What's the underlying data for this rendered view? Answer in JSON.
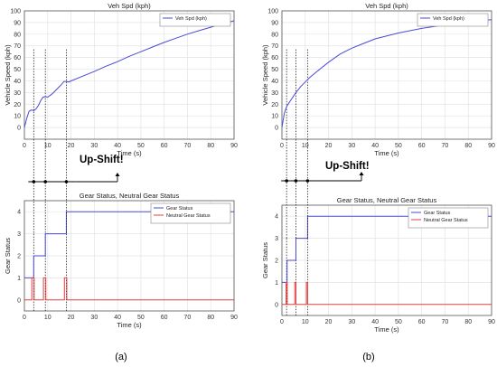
{
  "panel_labels": [
    "(a)",
    "(b)"
  ],
  "annotation": "Up-Shift!",
  "chart_data": [
    {
      "type": "line",
      "title": "Veh Spd (kph)",
      "xlabel": "Time (s)",
      "ylabel": "Vehicle Speed (kph)",
      "xlim": [
        0,
        90
      ],
      "ylim": [
        -10,
        100
      ],
      "xticks": [
        0,
        10,
        20,
        30,
        40,
        50,
        60,
        70,
        80,
        90
      ],
      "yticks": [
        0,
        10,
        20,
        30,
        40,
        50,
        60,
        70,
        80,
        90,
        100
      ],
      "grid": true,
      "legend_position": "top-right",
      "series": [
        {
          "name": "Veh Spd (kph)",
          "color": "#4a4ad8",
          "x": [
            0,
            1,
            2,
            3,
            4,
            5,
            6,
            7,
            8,
            9,
            10,
            12,
            14,
            16,
            17,
            18,
            19,
            20,
            25,
            30,
            35,
            40,
            45,
            50,
            55,
            60,
            65,
            70,
            75,
            80,
            85,
            90
          ],
          "y": [
            0,
            8,
            14,
            15,
            14.5,
            16,
            19,
            23,
            26,
            26.5,
            26,
            29,
            33,
            37,
            39.5,
            39.5,
            39,
            40,
            44,
            48,
            52.5,
            56.5,
            61,
            65,
            69,
            73,
            76.5,
            80,
            83,
            86,
            89,
            91.5
          ]
        }
      ],
      "event_lines_x": [
        4,
        9,
        18
      ]
    },
    {
      "type": "line",
      "title": "Gear Status, Neutral Gear Status",
      "xlabel": "Time (s)",
      "ylabel": "Gear Status",
      "xlim": [
        0,
        90
      ],
      "ylim": [
        -0.5,
        4.5
      ],
      "xticks": [
        0,
        10,
        20,
        30,
        40,
        50,
        60,
        70,
        80,
        90
      ],
      "yticks": [
        0,
        1,
        2,
        3,
        4
      ],
      "grid": true,
      "legend_position": "top-right",
      "series": [
        {
          "name": "Gear Status",
          "color": "#4a4ad8",
          "x": [
            0,
            4,
            4,
            9,
            9,
            18,
            18,
            90
          ],
          "y": [
            1,
            1,
            2,
            2,
            3,
            3,
            4,
            4
          ]
        },
        {
          "name": "Neutral Gear Status",
          "color": "#e04040",
          "x": [
            0,
            3.2,
            3.2,
            4.2,
            4.2,
            8.2,
            8.2,
            9.2,
            9.2,
            17.2,
            17.2,
            18.2,
            18.2,
            90
          ],
          "y": [
            0,
            0,
            1,
            1,
            0,
            0,
            1,
            1,
            0,
            0,
            1,
            1,
            0,
            0
          ]
        }
      ],
      "event_lines_x": [
        4,
        9,
        18
      ]
    },
    {
      "type": "line",
      "title": "Veh Spd (kph)",
      "xlabel": "Time (s)",
      "ylabel": "Vehicle Speed (kph)",
      "xlim": [
        0,
        90
      ],
      "ylim": [
        -10,
        100
      ],
      "xticks": [
        0,
        10,
        20,
        30,
        40,
        50,
        60,
        70,
        80,
        90
      ],
      "yticks": [
        0,
        10,
        20,
        30,
        40,
        50,
        60,
        70,
        80,
        90,
        100
      ],
      "grid": true,
      "legend_position": "top-right",
      "series": [
        {
          "name": "Veh Spd (kph)",
          "color": "#4a4ad8",
          "x": [
            0,
            1,
            2,
            3,
            4,
            5,
            6,
            8,
            10,
            12,
            15,
            20,
            25,
            30,
            35,
            40,
            50,
            60,
            70,
            80,
            90
          ],
          "y": [
            0,
            12,
            18,
            21,
            24,
            27,
            30,
            35,
            39,
            43,
            48,
            56,
            63,
            68,
            72,
            76,
            81,
            85,
            88,
            90.5,
            92.5
          ]
        }
      ],
      "event_lines_x": [
        2,
        6,
        11
      ]
    },
    {
      "type": "line",
      "title": "Gear Status, Neutral Gear Status",
      "xlabel": "Time (s)",
      "ylabel": "Gear Status",
      "xlim": [
        0,
        90
      ],
      "ylim": [
        -0.5,
        4.5
      ],
      "xticks": [
        0,
        10,
        20,
        30,
        40,
        50,
        60,
        70,
        80,
        90
      ],
      "yticks": [
        0,
        1,
        2,
        3,
        4
      ],
      "grid": true,
      "legend_position": "top-right",
      "series": [
        {
          "name": "Gear Status",
          "color": "#4a4ad8",
          "x": [
            0,
            2.2,
            2.2,
            6,
            6,
            11,
            11,
            90
          ],
          "y": [
            1,
            1,
            2,
            2,
            3,
            3,
            4,
            4
          ]
        },
        {
          "name": "Neutral Gear Status",
          "color": "#e04040",
          "x": [
            0,
            1.8,
            1.8,
            2.3,
            2.3,
            5.5,
            5.5,
            6,
            6,
            10.5,
            10.5,
            11,
            11,
            90
          ],
          "y": [
            0,
            0,
            1,
            1,
            0,
            0,
            1,
            1,
            0,
            0,
            1,
            1,
            0,
            0
          ]
        }
      ],
      "event_lines_x": [
        2,
        6,
        11
      ]
    }
  ]
}
